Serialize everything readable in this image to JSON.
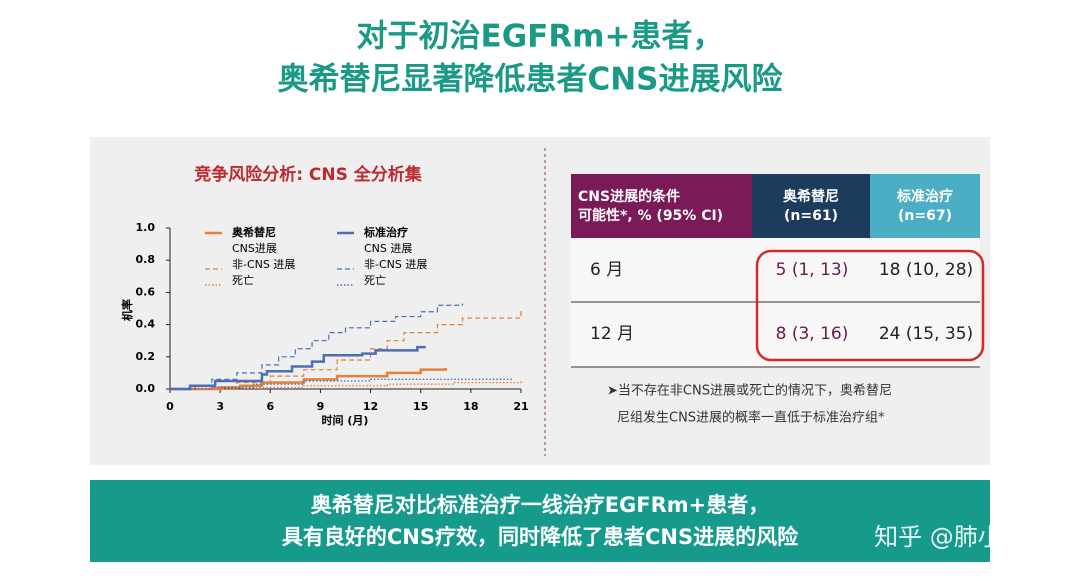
{
  "title": [
    "对于初治EGFRm+患者，",
    "奥希替尼显著降低患者CNS进展风险"
  ],
  "chart_data": {
    "type": "step",
    "title": "竞争风险分析: CNS 全分析集",
    "xlabel": "时间 (月)",
    "ylabel": "机率",
    "xlim": [
      0,
      21
    ],
    "xticks": [
      0,
      3,
      6,
      9,
      12,
      15,
      18,
      21
    ],
    "ylim": [
      0,
      1
    ],
    "yticks": [
      {
        "value": 0,
        "label": "0.0"
      },
      {
        "value": 0.2,
        "label": "0.2"
      },
      {
        "value": 0.4,
        "label": "0.4"
      },
      {
        "value": 0.6,
        "label": "0.6"
      },
      {
        "value": 0.8,
        "label": "0.8"
      },
      {
        "value": 1,
        "label": "1.0"
      }
    ],
    "legend_groups": [
      {
        "name": "奥希替尼",
        "color": "#e8803a"
      },
      {
        "name": "标准治疗",
        "color": "#4a6fb5"
      }
    ],
    "series": [
      {
        "name": "CNS进展",
        "group": 0,
        "style": "solid",
        "color": "#e8803a",
        "x": [
          0,
          3,
          4.2,
          5.5,
          8,
          10,
          13,
          15,
          16.5
        ],
        "values": [
          0,
          0.01,
          0.02,
          0.04,
          0.06,
          0.08,
          0.1,
          0.12,
          0.13
        ]
      },
      {
        "name": "非-CNS 进展",
        "group": 0,
        "style": "dashed",
        "color": "#e8803a",
        "x": [
          0,
          2.5,
          4,
          6,
          8,
          10,
          12,
          13,
          14,
          16,
          17.5,
          21
        ],
        "values": [
          0,
          0.01,
          0.04,
          0.08,
          0.12,
          0.18,
          0.25,
          0.3,
          0.35,
          0.4,
          0.44,
          0.5
        ]
      },
      {
        "name": "死亡",
        "group": 0,
        "style": "dotted",
        "color": "#e8803a",
        "x": [
          0,
          4,
          8,
          13,
          17,
          21
        ],
        "values": [
          0,
          0.01,
          0.02,
          0.03,
          0.04,
          0.05
        ]
      },
      {
        "name": "CNS 进展",
        "group": 1,
        "style": "solid",
        "color": "#4a6fb5",
        "x": [
          0,
          1.2,
          2.7,
          5.5,
          5.8,
          7.3,
          8.5,
          9.2,
          11.5,
          12.3,
          14.8,
          15.3
        ],
        "values": [
          0,
          0.02,
          0.05,
          0.09,
          0.11,
          0.14,
          0.17,
          0.21,
          0.22,
          0.24,
          0.26,
          0.26
        ]
      },
      {
        "name": "非-CNS 进展",
        "group": 1,
        "style": "dashed",
        "color": "#4a6fb5",
        "x": [
          0,
          1.5,
          2.5,
          4,
          5.5,
          6.5,
          7.5,
          8.5,
          9.5,
          10.5,
          12,
          13.5,
          15,
          16,
          17.5
        ],
        "values": [
          0,
          0.02,
          0.06,
          0.1,
          0.15,
          0.2,
          0.25,
          0.3,
          0.35,
          0.38,
          0.42,
          0.45,
          0.48,
          0.52,
          0.53
        ]
      },
      {
        "name": "死亡",
        "group": 1,
        "style": "dotted",
        "color": "#4a6fb5",
        "x": [
          0,
          2.5,
          5,
          8,
          12,
          20.5
        ],
        "values": [
          0,
          0.01,
          0.03,
          0.05,
          0.06,
          0.06
        ]
      }
    ]
  },
  "table": {
    "header": [
      [
        "CNS进展的条件",
        "可能性*, % (95% CI)"
      ],
      [
        "奥希替尼",
        "(n=61)"
      ],
      [
        "标准治疗",
        "(n=67)"
      ]
    ],
    "rows": [
      [
        "6 月",
        "5 (1, 13)",
        "18 (10, 28)"
      ],
      [
        "12 月",
        "8 (3, 16)",
        "24 (15, 35)"
      ]
    ]
  },
  "note": [
    "➤当不存在非CNS进展或死亡的情况下，奥希替尼",
    "尼组发生CNS进展的概率一直低于标准治疗组*"
  ],
  "banner": [
    "奥希替尼对比标准治疗一线治疗EGFRm+患者，",
    "具有良好的CNS疗效，同时降低了患者CNS进展的风险"
  ],
  "watermark": "知乎 @肺小友"
}
